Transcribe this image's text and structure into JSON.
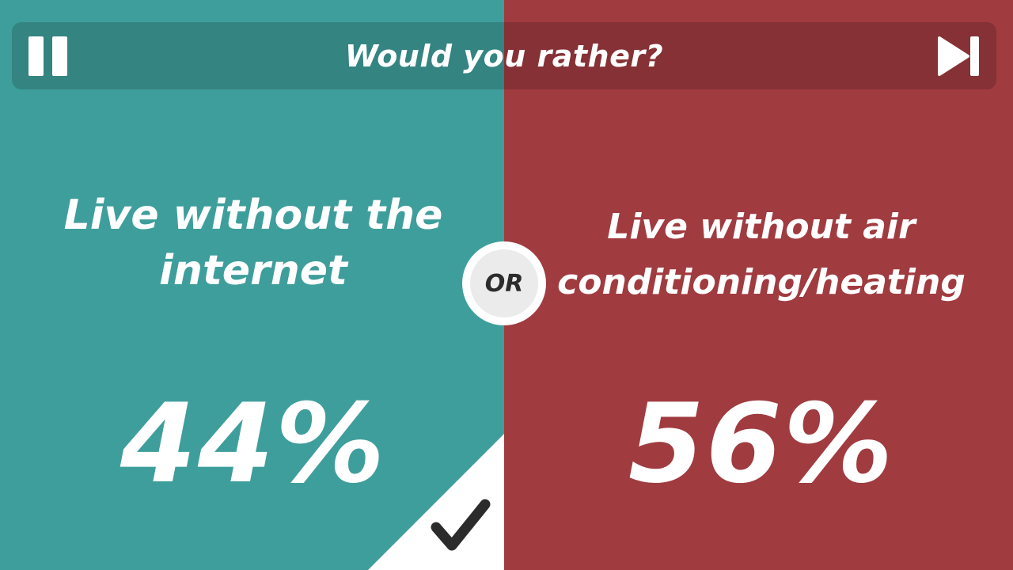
{
  "header": {
    "title": "Would you rather?"
  },
  "controls": {
    "pause_icon": "pause-icon",
    "skip_icon": "skip-next-icon"
  },
  "options": [
    {
      "text": "Live without the internet",
      "percent": "44%",
      "color": "#3e9e9b",
      "selected": true
    },
    {
      "text": "Live without air conditioning/heating",
      "percent": "56%",
      "color": "#a03b40",
      "selected": false
    }
  ],
  "divider": {
    "label": "OR"
  },
  "result": {
    "check_icon": "checkmark-icon"
  }
}
